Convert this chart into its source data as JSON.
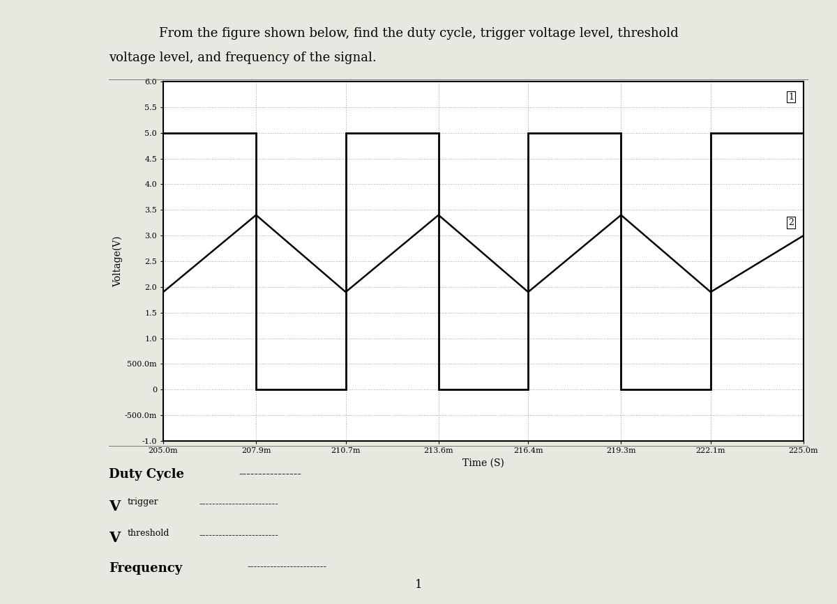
{
  "title_line1": "From the figure shown below, find the duty cycle, trigger voltage level, threshold",
  "title_line2": "voltage level, and frequency of the signal.",
  "xlabel": "Time (S)",
  "ylabel": "Voltage(V)",
  "xlim": [
    0.205,
    0.225
  ],
  "ylim": [
    -1.0,
    6.0
  ],
  "xticks": [
    0.205,
    0.2079,
    0.2107,
    0.2136,
    0.2164,
    0.2193,
    0.2221,
    0.225
  ],
  "xtick_labels": [
    "205.0m",
    "207.9m",
    "210.7m",
    "213.6m",
    "216.4m",
    "219.3m",
    "222.1m",
    "225.0m"
  ],
  "yticks": [
    -1.0,
    -0.5,
    0.0,
    0.5,
    1.0,
    1.5,
    2.0,
    2.5,
    3.0,
    3.5,
    4.0,
    4.5,
    5.0,
    5.5,
    6.0
  ],
  "ytick_labels": [
    "-1.0",
    "-500.0m",
    "0",
    "500.0m",
    "1.0",
    "1.5",
    "2.0",
    "2.5",
    "3.0",
    "3.5",
    "4.0",
    "4.5",
    "5.0",
    "5.5",
    "6.0"
  ],
  "bg_color": "#ffffff",
  "figure_bg": "#e8e8e0",
  "square_wave_x": [
    0.205,
    0.2079,
    0.2079,
    0.2107,
    0.2107,
    0.2136,
    0.2136,
    0.2164,
    0.2164,
    0.2193,
    0.2193,
    0.2221,
    0.2221,
    0.225
  ],
  "square_wave_y": [
    5.0,
    5.0,
    0.0,
    0.0,
    5.0,
    5.0,
    0.0,
    0.0,
    5.0,
    5.0,
    0.0,
    0.0,
    5.0,
    5.0
  ],
  "triangle_wave_x": [
    0.205,
    0.2079,
    0.2107,
    0.2136,
    0.2164,
    0.2193,
    0.2221,
    0.225
  ],
  "triangle_wave_y": [
    1.9,
    3.4,
    1.9,
    3.4,
    1.9,
    3.4,
    1.9,
    3.0
  ],
  "duty_cycle_text": "Duty Cycle",
  "duty_cycle_dashes": "----------------",
  "vtrigger_main": "V",
  "vtrigger_sub": "trigger",
  "vtrigger_dashes": "------------------------",
  "vthreshold_main": "V",
  "vthreshold_sub": "threshold",
  "vthreshold_dashes": "------------------------",
  "frequency_text": "Frequency",
  "frequency_dashes": "------------------------",
  "page_number": "1"
}
